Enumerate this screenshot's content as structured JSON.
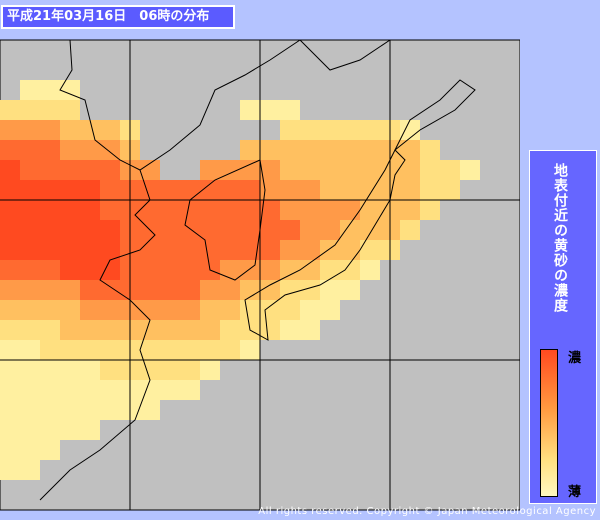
{
  "header": {
    "title": "平成21年03月16日　06時の分布"
  },
  "legend": {
    "title": "地表付近の黄砂の濃度",
    "high": "濃",
    "low": "薄"
  },
  "footer": {
    "copyright": "All rights reserved. Copyright © Japan Meteorological Agency"
  }
}
